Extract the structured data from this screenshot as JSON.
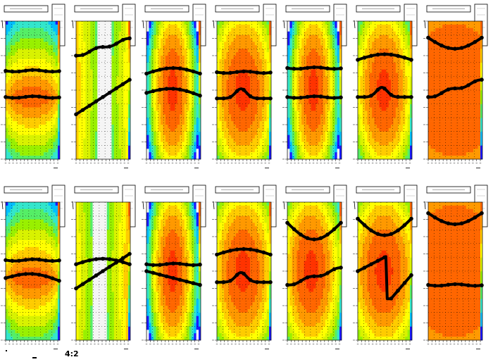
{
  "page": {
    "footer_label": "4:2"
  },
  "chart_data": {
    "type": "heatmap",
    "colors": [
      "#f5f5f5",
      "#1a1aff",
      "#00bfff",
      "#33e6cc",
      "#55ee66",
      "#99f000",
      "#d8f200",
      "#ffff00",
      "#ffcc00",
      "#ff9900",
      "#ff6600",
      "#ff3300"
    ],
    "marker_color": "#000000",
    "panels": [
      {
        "row": 0,
        "col": 0,
        "field": {
          "kind": "band",
          "c": 0.55,
          "w": 0.9
        },
        "curves": [
          {
            "shape": "flat",
            "y": 0.36
          },
          {
            "shape": "flat",
            "y": 0.55
          }
        ]
      },
      {
        "row": 0,
        "col": 1,
        "field": {
          "kind": "white",
          "c": 0.55,
          "w": 0.45
        },
        "curves": [
          {
            "shape": "cross",
            "y": 0.55
          },
          {
            "shape": "rise",
            "y": 0.25
          }
        ]
      },
      {
        "row": 0,
        "col": 2,
        "field": {
          "kind": "blob",
          "c": 0.5,
          "w": 0.35
        },
        "curves": [
          {
            "shape": "hump",
            "y": 0.38
          },
          {
            "shape": "dip",
            "y": 0.52
          }
        ]
      },
      {
        "row": 0,
        "col": 3,
        "field": {
          "kind": "blob",
          "c": 0.5,
          "w": 0.55
        },
        "curves": [
          {
            "shape": "flat",
            "y": 0.37
          },
          {
            "shape": "bump",
            "y": 0.56
          }
        ]
      },
      {
        "row": 0,
        "col": 4,
        "field": {
          "kind": "blob",
          "c": 0.5,
          "w": 0.35
        },
        "curves": [
          {
            "shape": "flat",
            "y": 0.34
          },
          {
            "shape": "flat",
            "y": 0.55
          }
        ]
      },
      {
        "row": 0,
        "col": 5,
        "field": {
          "kind": "blob",
          "c": 0.5,
          "w": 0.5
        },
        "curves": [
          {
            "shape": "hump",
            "y": 0.28
          },
          {
            "shape": "bump",
            "y": 0.55
          }
        ]
      },
      {
        "row": 0,
        "col": 6,
        "field": {
          "kind": "red",
          "c": 0.5,
          "w": 1.0
        },
        "curves": [
          {
            "shape": "valley",
            "y": 0.12
          },
          {
            "shape": "rise",
            "y": 0.55
          }
        ]
      },
      {
        "row": 1,
        "col": 0,
        "field": {
          "kind": "band",
          "c": 0.55,
          "w": 0.7
        },
        "curves": [
          {
            "shape": "flat",
            "y": 0.42
          },
          {
            "shape": "dip",
            "y": 0.55
          }
        ]
      },
      {
        "row": 1,
        "col": 1,
        "field": {
          "kind": "white",
          "c": 0.45,
          "w": 0.3
        },
        "curves": [
          {
            "shape": "cross",
            "y": 0.5
          },
          {
            "shape": "hump",
            "y": 0.45
          }
        ]
      },
      {
        "row": 1,
        "col": 2,
        "field": {
          "kind": "blob",
          "c": 0.5,
          "w": 0.35
        },
        "curves": [
          {
            "shape": "flat",
            "y": 0.45
          },
          {
            "shape": "fall",
            "y": 0.55
          }
        ]
      },
      {
        "row": 1,
        "col": 3,
        "field": {
          "kind": "blob",
          "c": 0.5,
          "w": 0.55
        },
        "curves": [
          {
            "shape": "hump",
            "y": 0.38
          },
          {
            "shape": "bump",
            "y": 0.58
          }
        ]
      },
      {
        "row": 1,
        "col": 4,
        "field": {
          "kind": "blob",
          "c": 0.45,
          "w": 0.5
        },
        "curves": [
          {
            "shape": "u",
            "y": 0.15
          },
          {
            "shape": "rise",
            "y": 0.6
          }
        ]
      },
      {
        "row": 1,
        "col": 5,
        "field": {
          "kind": "blob",
          "c": 0.5,
          "w": 0.6
        },
        "curves": [
          {
            "shape": "u",
            "y": 0.12
          },
          {
            "shape": "zig",
            "y": 0.5
          }
        ]
      },
      {
        "row": 1,
        "col": 6,
        "field": {
          "kind": "red",
          "c": 0.5,
          "w": 1.0
        },
        "curves": [
          {
            "shape": "valley",
            "y": 0.08
          },
          {
            "shape": "flat",
            "y": 0.6
          }
        ]
      }
    ]
  }
}
